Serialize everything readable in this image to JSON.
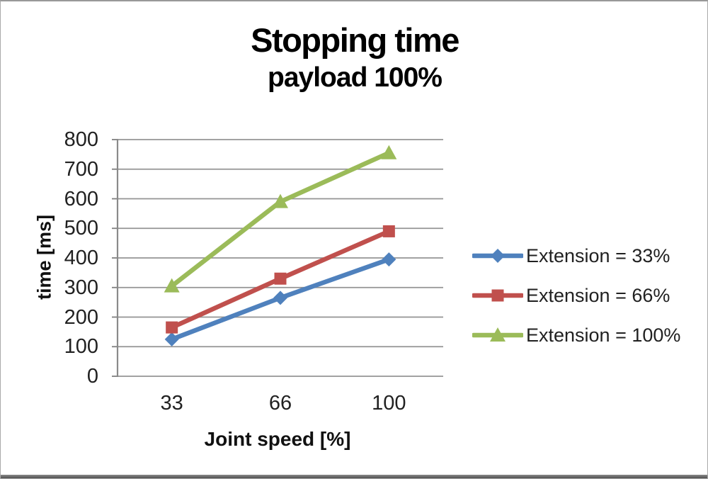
{
  "figure": {
    "title": "Stopping time",
    "subtitle": "payload 100%"
  },
  "chart_data": {
    "type": "line",
    "title": "Stopping time",
    "subtitle": "payload 100%",
    "xlabel": "Joint speed [%]",
    "ylabel": "time [ms]",
    "categories": [
      "33",
      "66",
      "100"
    ],
    "y_ticks": [
      800,
      700,
      600,
      500,
      400,
      300,
      200,
      100,
      0
    ],
    "ylim": [
      0,
      800
    ],
    "grid": "horizontal",
    "legend_position": "right",
    "series": [
      {
        "name": "Extension = 33%",
        "marker": "diamond",
        "color": "#4F81BD",
        "values": [
          125,
          265,
          395
        ]
      },
      {
        "name": "Extension = 66%",
        "marker": "square",
        "color": "#C0504D",
        "values": [
          165,
          330,
          490
        ]
      },
      {
        "name": "Extension = 100%",
        "marker": "triangle",
        "color": "#9BBB59",
        "values": [
          305,
          590,
          755
        ]
      }
    ],
    "style_colors": {
      "gridline": "#949494",
      "axis": "#8a8a8a",
      "tick": "#7f7f7f",
      "text": "#212121"
    }
  }
}
